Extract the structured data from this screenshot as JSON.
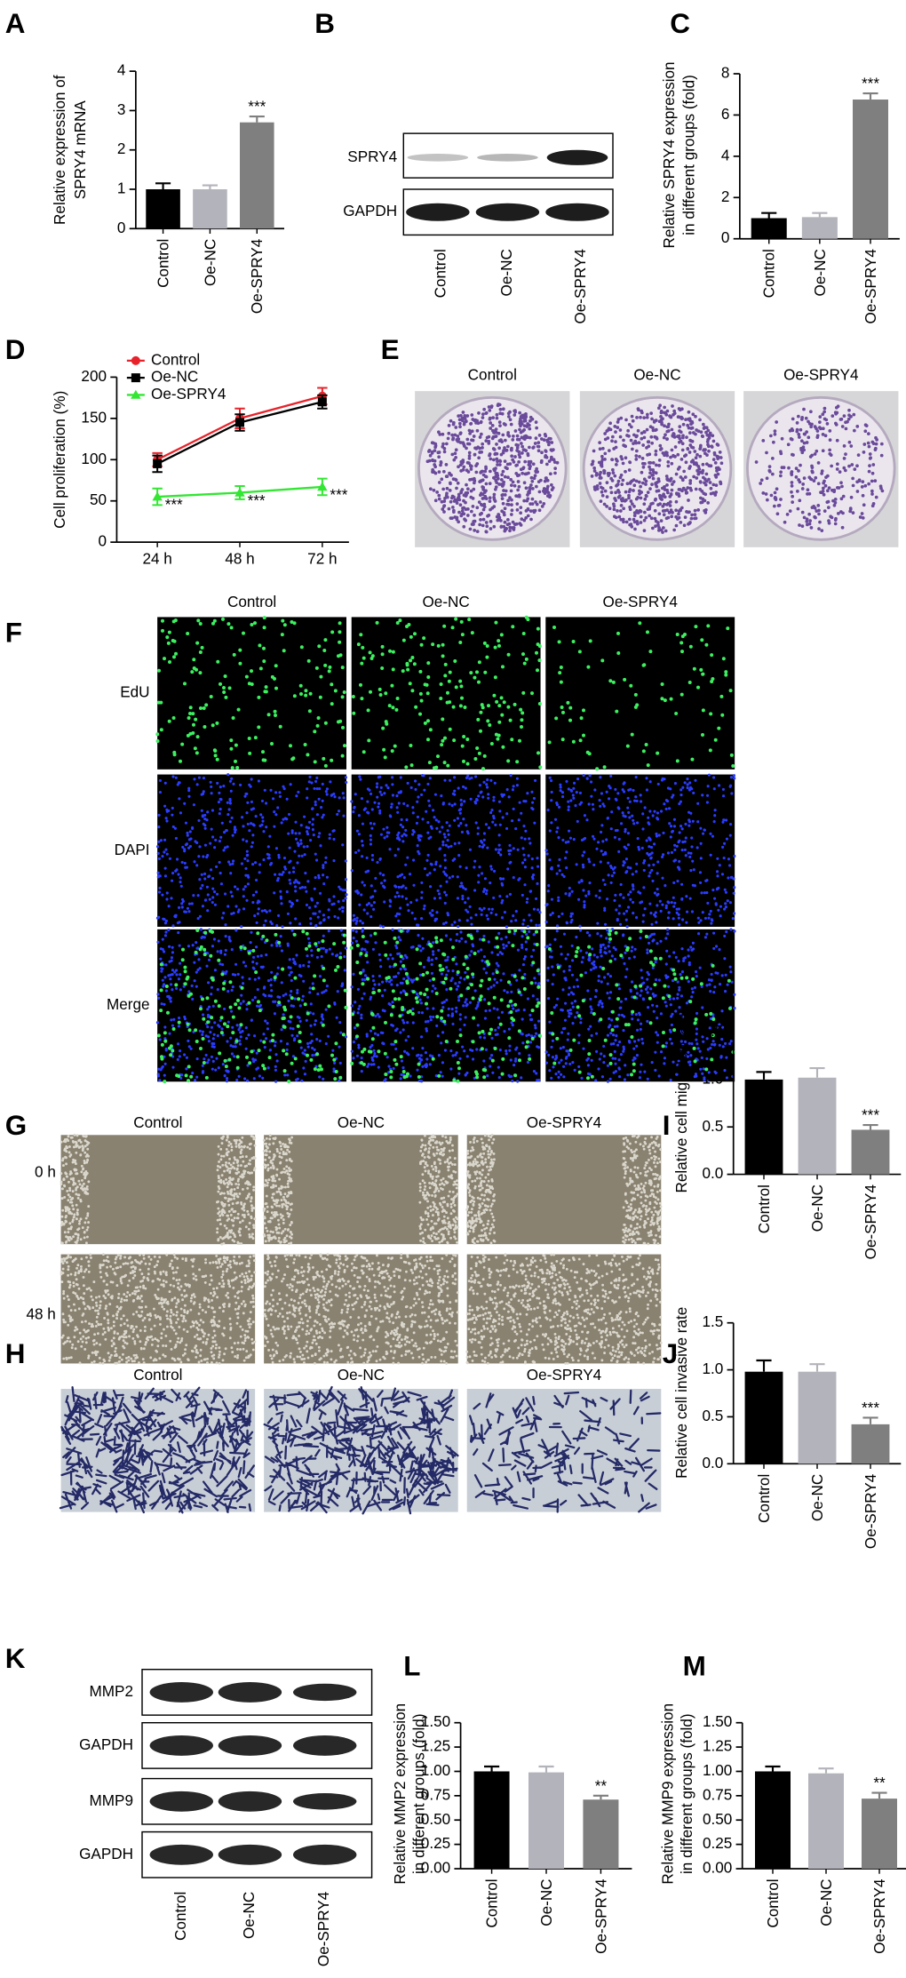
{
  "figure": {
    "panel_letters": [
      "A",
      "B",
      "C",
      "D",
      "E",
      "F",
      "G",
      "H",
      "I",
      "J",
      "K",
      "L",
      "M"
    ],
    "blot_B": {
      "rows": [
        "SPRY4",
        "GAPDH"
      ],
      "columns": [
        "Control",
        "Oe-NC",
        "Oe-SPRY4"
      ]
    },
    "colonies_E": {
      "columns": [
        "Control",
        "Oe-NC",
        "Oe-SPRY4"
      ]
    },
    "edu_F": {
      "columns": [
        "Control",
        "Oe-NC",
        "Oe-SPRY4"
      ],
      "rows": [
        "EdU",
        "DAPI",
        "Merge"
      ]
    },
    "wound_G": {
      "columns": [
        "Control",
        "Oe-NC",
        "Oe-SPRY4"
      ],
      "rows": [
        "0 h",
        "48 h"
      ]
    },
    "transwell_H": {
      "columns": [
        "Control",
        "Oe-NC",
        "Oe-SPRY4"
      ]
    },
    "blot_K": {
      "rows": [
        "MMP2",
        "GAPDH",
        "MMP9",
        "GAPDH"
      ],
      "columns": [
        "Control",
        "Oe-NC",
        "Oe-SPRY4"
      ]
    }
  },
  "chart_data": [
    {
      "type": "bar",
      "y_label": [
        "Relative expression of",
        "SPRY4 mRNA"
      ],
      "categories": [
        "Control",
        "Oe-NC",
        "Oe-SPRY4"
      ],
      "values": [
        1.0,
        1.0,
        2.7
      ],
      "errors": [
        0.15,
        0.1,
        0.15
      ],
      "colors": [
        "#000000",
        "#b3b3bb",
        "#7f7f7f"
      ],
      "ylim": [
        0,
        4
      ],
      "yticks": [
        0,
        1,
        2,
        3,
        4
      ],
      "annotations": [
        {
          "text": "***",
          "x": "Oe-SPRY4"
        }
      ]
    },
    {
      "type": "bar",
      "y_label": [
        "Relative SPRY4 expression",
        "in different groups (fold)"
      ],
      "categories": [
        "Control",
        "Oe-NC",
        "Oe-SPRY4"
      ],
      "values": [
        1.0,
        1.05,
        6.75
      ],
      "errors": [
        0.25,
        0.2,
        0.3
      ],
      "colors": [
        "#000000",
        "#b3b3bb",
        "#7f7f7f"
      ],
      "ylim": [
        0,
        8
      ],
      "yticks": [
        0,
        2,
        4,
        6,
        8
      ],
      "annotations": [
        {
          "text": "***",
          "x": "Oe-SPRY4"
        }
      ]
    },
    {
      "type": "line",
      "y_label": "Cell proliferation (%)",
      "categories": [
        "24 h",
        "48 h",
        "72 h"
      ],
      "series": [
        {
          "name": "Control",
          "color": "#e8222a",
          "marker": "circle",
          "values": [
            100,
            150,
            177
          ],
          "errors": [
            8,
            12,
            10
          ]
        },
        {
          "name": "Oe-NC",
          "color": "#000000",
          "marker": "square",
          "values": [
            95,
            145,
            170
          ],
          "errors": [
            10,
            10,
            8
          ]
        },
        {
          "name": "Oe-SPRY4",
          "color": "#33e633",
          "marker": "triangle",
          "values": [
            55,
            60,
            67
          ],
          "errors": [
            10,
            8,
            10
          ]
        }
      ],
      "ylim": [
        0,
        200
      ],
      "yticks": [
        0,
        50,
        100,
        150,
        200
      ],
      "legend": "top-left",
      "annotations": [
        {
          "text": "***",
          "x": "24 h"
        },
        {
          "text": "***",
          "x": "48 h"
        },
        {
          "text": "***",
          "x": "72 h"
        }
      ]
    },
    {
      "type": "bar",
      "y_label": "Relative cell migration rate",
      "categories": [
        "Control",
        "Oe-NC",
        "Oe-SPRY4"
      ],
      "values": [
        1.0,
        1.02,
        0.47
      ],
      "errors": [
        0.08,
        0.1,
        0.05
      ],
      "colors": [
        "#000000",
        "#b3b3bb",
        "#7f7f7f"
      ],
      "ylim": [
        0,
        1.5
      ],
      "yticks": [
        {
          "value": 0,
          "label": "0.0"
        },
        0.5,
        {
          "value": 1,
          "label": "1.0"
        },
        1.5
      ],
      "annotations": [
        {
          "text": "***",
          "x": "Oe-SPRY4"
        }
      ]
    },
    {
      "type": "bar",
      "y_label": "Relative cell invasive rate",
      "categories": [
        "Control",
        "Oe-NC",
        "Oe-SPRY4"
      ],
      "values": [
        0.98,
        0.98,
        0.42
      ],
      "errors": [
        0.12,
        0.08,
        0.07
      ],
      "colors": [
        "#000000",
        "#b3b3bb",
        "#7f7f7f"
      ],
      "ylim": [
        0,
        1.5
      ],
      "yticks": [
        {
          "value": 0,
          "label": "0.0"
        },
        0.5,
        {
          "value": 1,
          "label": "1.0"
        },
        1.5
      ],
      "annotations": [
        {
          "text": "***",
          "x": "Oe-SPRY4"
        }
      ]
    },
    {
      "type": "bar",
      "y_label": [
        "Relative MMP2 expression",
        "in different groups (fold)"
      ],
      "categories": [
        "Control",
        "Oe-NC",
        "Oe-SPRY4"
      ],
      "values": [
        1.0,
        0.99,
        0.71
      ],
      "errors": [
        0.05,
        0.06,
        0.04
      ],
      "colors": [
        "#000000",
        "#b3b3bb",
        "#7f7f7f"
      ],
      "ylim": [
        0,
        1.5
      ],
      "yticks": [
        {
          "value": 0,
          "label": "0.00"
        },
        0.25,
        {
          "value": 0.5,
          "label": "0.50"
        },
        {
          "value": 0.75,
          "label": "0.75"
        },
        {
          "value": 1,
          "label": "1.00"
        },
        1.25,
        {
          "value": 1.5,
          "label": "1.50"
        }
      ],
      "annotations": [
        {
          "text": "**",
          "x": "Oe-SPRY4"
        }
      ]
    },
    {
      "type": "bar",
      "y_label": [
        "Relative MMP9 expression",
        "in different groups (fold)"
      ],
      "categories": [
        "Control",
        "Oe-NC",
        "Oe-SPRY4"
      ],
      "values": [
        1.0,
        0.98,
        0.72
      ],
      "errors": [
        0.05,
        0.05,
        0.06
      ],
      "colors": [
        "#000000",
        "#b3b3bb",
        "#7f7f7f"
      ],
      "ylim": [
        0,
        1.5
      ],
      "yticks": [
        {
          "value": 0,
          "label": "0.00"
        },
        0.25,
        {
          "value": 0.5,
          "label": "0.50"
        },
        {
          "value": 0.75,
          "label": "0.75"
        },
        {
          "value": 1,
          "label": "1.00"
        },
        1.25,
        {
          "value": 1.5,
          "label": "1.50"
        }
      ],
      "annotations": [
        {
          "text": "**",
          "x": "Oe-SPRY4"
        }
      ]
    }
  ]
}
